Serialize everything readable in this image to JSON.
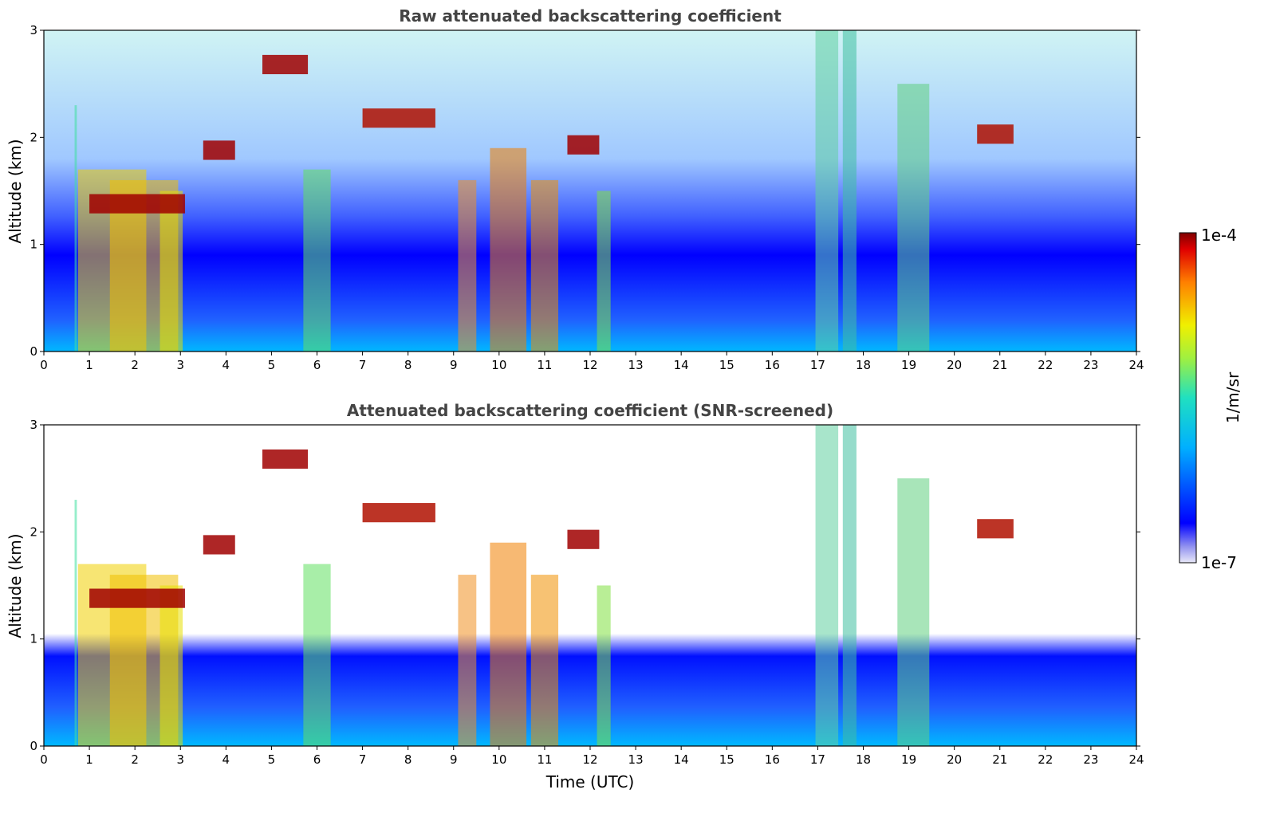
{
  "chart_data": [
    {
      "type": "heatmap",
      "title": "Raw attenuated backscattering coefficient",
      "xlabel": "",
      "ylabel": "Altitude (km)",
      "xlim": [
        0,
        24
      ],
      "ylim": [
        0,
        3
      ],
      "x_ticks": [
        "0",
        "1",
        "2",
        "3",
        "4",
        "5",
        "6",
        "7",
        "8",
        "9",
        "10",
        "11",
        "12",
        "13",
        "14",
        "15",
        "16",
        "17",
        "18",
        "19",
        "20",
        "21",
        "22",
        "23",
        "24"
      ],
      "y_ticks": [
        "0",
        "1",
        "2",
        "3"
      ],
      "grid": false
    },
    {
      "type": "heatmap",
      "title": "Attenuated backscattering coefficient (SNR-screened)",
      "xlabel": "Time (UTC)",
      "ylabel": "Altitude (km)",
      "xlim": [
        0,
        24
      ],
      "ylim": [
        0,
        3
      ],
      "x_ticks": [
        "0",
        "1",
        "2",
        "3",
        "4",
        "5",
        "6",
        "7",
        "8",
        "9",
        "10",
        "11",
        "12",
        "13",
        "14",
        "15",
        "16",
        "17",
        "18",
        "19",
        "20",
        "21",
        "22",
        "23",
        "24"
      ],
      "y_ticks": [
        "0",
        "1",
        "2",
        "3"
      ],
      "grid": false
    }
  ],
  "colorbar": {
    "label": "1/m/sr",
    "max_label": "1e-4",
    "min_label": "1e-7",
    "colormap": "jet",
    "scale": "log"
  }
}
